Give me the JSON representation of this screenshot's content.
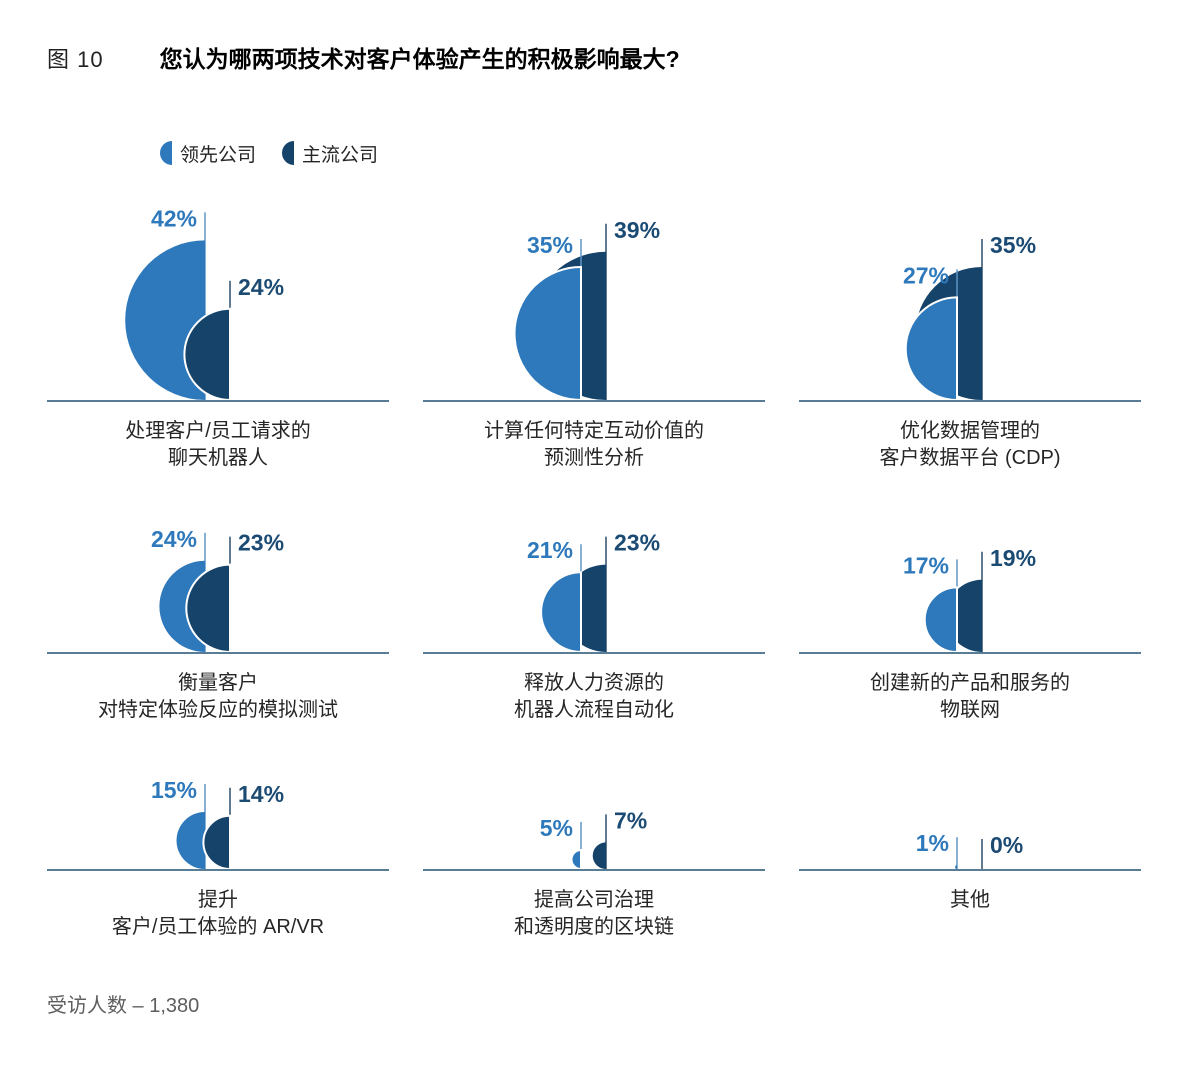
{
  "figure": {
    "tag": "图 10",
    "title": "您认为哪两项技术对客户体验产生的积极影响最大?"
  },
  "legend": [
    {
      "label": "领先公司",
      "color": "#2E79BC"
    },
    {
      "label": "主流公司",
      "color": "#16436A"
    }
  ],
  "footer": "受访人数 – 1,380",
  "chart_data": {
    "type": "bar",
    "variant": "semicircle-small-multiples",
    "unit": "%",
    "legend_position": "top-left",
    "grid": false,
    "value_range": [
      0,
      42
    ],
    "series_names": [
      "领先公司",
      "主流公司"
    ],
    "categories": [
      [
        "处理客户/员工请求的",
        "聊天机器人"
      ],
      [
        "计算任何特定互动价值的",
        "预测性分析"
      ],
      [
        "优化数据管理的",
        "客户数据平台 (CDP)"
      ],
      [
        "衡量客户",
        "对特定体验反应的模拟测试"
      ],
      [
        "释放人力资源的",
        "机器人流程自动化"
      ],
      [
        "创建新的产品和服务的",
        "物联网"
      ],
      [
        "提升",
        "客户/员工体验的 AR/VR"
      ],
      [
        "提高公司治理",
        "和透明度的区块链"
      ],
      [
        "其他"
      ]
    ],
    "series": [
      {
        "name": "领先公司",
        "color": "#2E79BC",
        "tick_color": "#5E95C5",
        "label_color": "#2E79BC",
        "values": [
          42,
          35,
          27,
          24,
          21,
          17,
          15,
          5,
          1
        ],
        "labels": [
          "42%",
          "35%",
          "27%",
          "24%",
          "21%",
          "17%",
          "15%",
          "5%",
          "1%"
        ]
      },
      {
        "name": "主流公司",
        "color": "#16436A",
        "tick_color": "#2E4E6B",
        "label_color": "#1B4A73",
        "values": [
          24,
          39,
          35,
          23,
          23,
          19,
          14,
          7,
          0
        ],
        "labels": [
          "24%",
          "39%",
          "35%",
          "23%",
          "23%",
          "19%",
          "14%",
          "7%",
          "0%"
        ]
      }
    ],
    "baseline_color": "#5A7D96",
    "px_per_percent_radius": 1.9
  }
}
